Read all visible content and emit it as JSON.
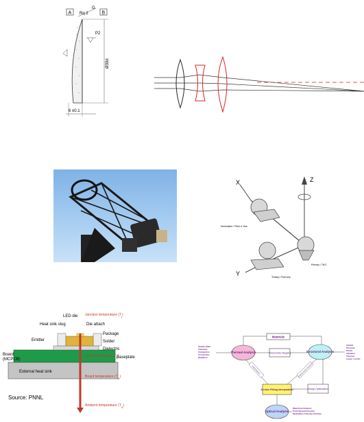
{
  "lens_drawing": {
    "label_a": "A",
    "label_b": "B",
    "roughness": "Rq 2",
    "g": "G",
    "p2": "P2",
    "z2": "Z2",
    "diameter": "Ø39d",
    "thickness": "6 ±0.1"
  },
  "telescope_photo": {},
  "gimbal_diagram": {
    "axis_z": "Z",
    "axis_x": "X",
    "axis_y": "Y",
    "label_left": "Declination / Pitch & Yaw",
    "label_right": "Primary / Tilt Z",
    "label_bottom": "Tertiary / Roll only"
  },
  "led_diagram": {
    "led_die": "LED die",
    "junction_temp": "Junction temperature (T",
    "junction_sub": "j",
    "heat_sink_slug": "Heat sink slug",
    "die_attach": "Die attach",
    "package": "Package",
    "emitter": "Emitter",
    "solder": "Solder",
    "board": "Board",
    "mcpcb": "(MCPCB)",
    "dielectric": "Dielectric",
    "lead_temp": "Lead temperature (T",
    "lead_sub": "L",
    "baseplate": "Baseplate",
    "board_temp": "Board temperature (T",
    "board_sub": "B",
    "external_heat_sink": "External heat sink",
    "ambient_temp": "Ambient temperature (T",
    "ambient_sub": "A",
    "source": "Source: PNNL",
    "colors": {
      "emitter": "#d9d9d9",
      "board": "#1f9a4a",
      "heatsink": "#bdbdbd",
      "arrow": "#c0392b"
    }
  },
  "stop_diagram": {
    "materials": "Materials",
    "thermal": "Thermal Analysis",
    "structural": "Structural Analysis",
    "temp_mapping": "Temperature Mapping",
    "zernike": "Zernike Fitting Interpolation",
    "design_opt": "Design Optimization",
    "optical": "Optical Analysis",
    "thermal_inputs": [
      "Steady-State",
      "Transient",
      "Conduction",
      "Convection",
      "Radiation"
    ],
    "structural_inputs": [
      "Inertial",
      "Pressure",
      "Shock",
      "Vibration",
      "Thermal",
      "Linear / nonlin"
    ],
    "optical_outputs": [
      "Wavefront Analysis",
      "Point-Spread Function",
      "Modulation Transfer Function"
    ],
    "diag_left": "Deformations",
    "diag_right": "Displacements Stresses",
    "colors": {
      "thermal": "#f2b8d6",
      "structural": "#bff0f2",
      "zernike": "#fff36b",
      "optical": "#bcd6f5",
      "text": "#6a1f8a"
    }
  }
}
